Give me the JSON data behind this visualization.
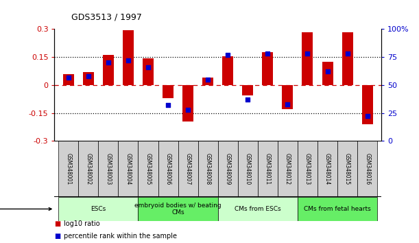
{
  "title": "GDS3513 / 1997",
  "samples": [
    "GSM348001",
    "GSM348002",
    "GSM348003",
    "GSM348004",
    "GSM348005",
    "GSM348006",
    "GSM348007",
    "GSM348008",
    "GSM348009",
    "GSM348010",
    "GSM348011",
    "GSM348012",
    "GSM348013",
    "GSM348014",
    "GSM348015",
    "GSM348016"
  ],
  "log10_ratio": [
    0.06,
    0.07,
    0.16,
    0.295,
    0.145,
    -0.07,
    -0.195,
    0.04,
    0.155,
    -0.055,
    0.175,
    -0.13,
    0.285,
    0.125,
    0.285,
    -0.21
  ],
  "percentile_rank": [
    57,
    58,
    70,
    72,
    66,
    32,
    28,
    55,
    77,
    37,
    78,
    33,
    78,
    62,
    78,
    22
  ],
  "cell_types": [
    {
      "label": "ESCs",
      "start": 0,
      "end": 3,
      "color": "#ccffcc"
    },
    {
      "label": "embryoid bodies w/ beating\nCMs",
      "start": 4,
      "end": 7,
      "color": "#66ee66"
    },
    {
      "label": "CMs from ESCs",
      "start": 8,
      "end": 11,
      "color": "#ccffcc"
    },
    {
      "label": "CMs from fetal hearts",
      "start": 12,
      "end": 15,
      "color": "#66ee66"
    }
  ],
  "bar_color": "#cc0000",
  "dot_color": "#0000cc",
  "label_bg": "#d0d0d0",
  "ylim_left": [
    -0.3,
    0.3
  ],
  "ylim_right": [
    0,
    100
  ],
  "yticks_left": [
    -0.3,
    -0.15,
    0.0,
    0.15,
    0.3
  ],
  "ytick_labels_left": [
    "-0.3",
    "-0.15",
    "0",
    "0.15",
    "0.3"
  ],
  "yticks_right": [
    0,
    25,
    50,
    75,
    100
  ],
  "ytick_labels_right": [
    "0",
    "25",
    "50",
    "75",
    "100%"
  ],
  "dotted_hlines": [
    -0.15,
    0.15
  ],
  "legend_items": [
    {
      "color": "#cc0000",
      "label": "log10 ratio"
    },
    {
      "color": "#0000cc",
      "label": "percentile rank within the sample"
    }
  ]
}
